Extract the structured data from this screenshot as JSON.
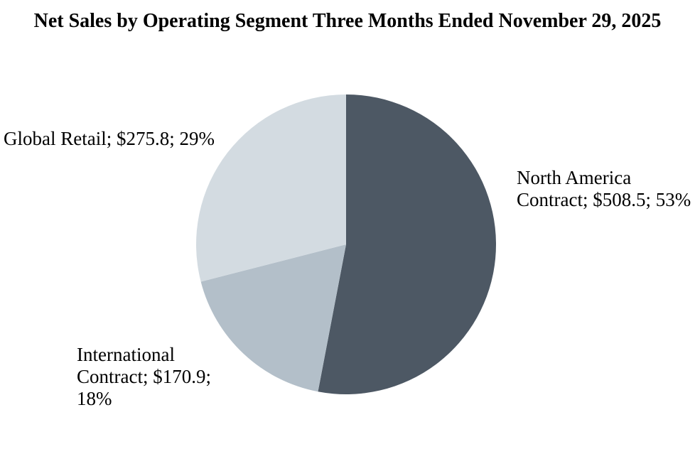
{
  "chart_data": {
    "type": "pie",
    "title": "Net Sales by Operating Segment Three Months Ended November 29, 2025",
    "start_angle_deg": 0,
    "direction": "clockwise",
    "legend_position": "none",
    "data_labels": "outside",
    "background_color": "#ffffff",
    "segments": [
      {
        "label": "North America Contract",
        "value": 508.5,
        "pct": 53,
        "color": "#4d5864"
      },
      {
        "label": "International Contract",
        "value": 170.9,
        "pct": 18,
        "color": "#b3bfc9"
      },
      {
        "label": "Global Retail",
        "value": 275.8,
        "pct": 29,
        "color": "#d3dbe1"
      }
    ]
  },
  "labels": {
    "global_retail": {
      "lines": [
        "Global Retail; $275.8; 29%"
      ]
    },
    "north_america": {
      "lines": [
        "North America",
        "Contract; $508.5; 53%"
      ]
    },
    "international": {
      "lines": [
        "International",
        "Contract; $170.9;",
        "18%"
      ]
    }
  }
}
